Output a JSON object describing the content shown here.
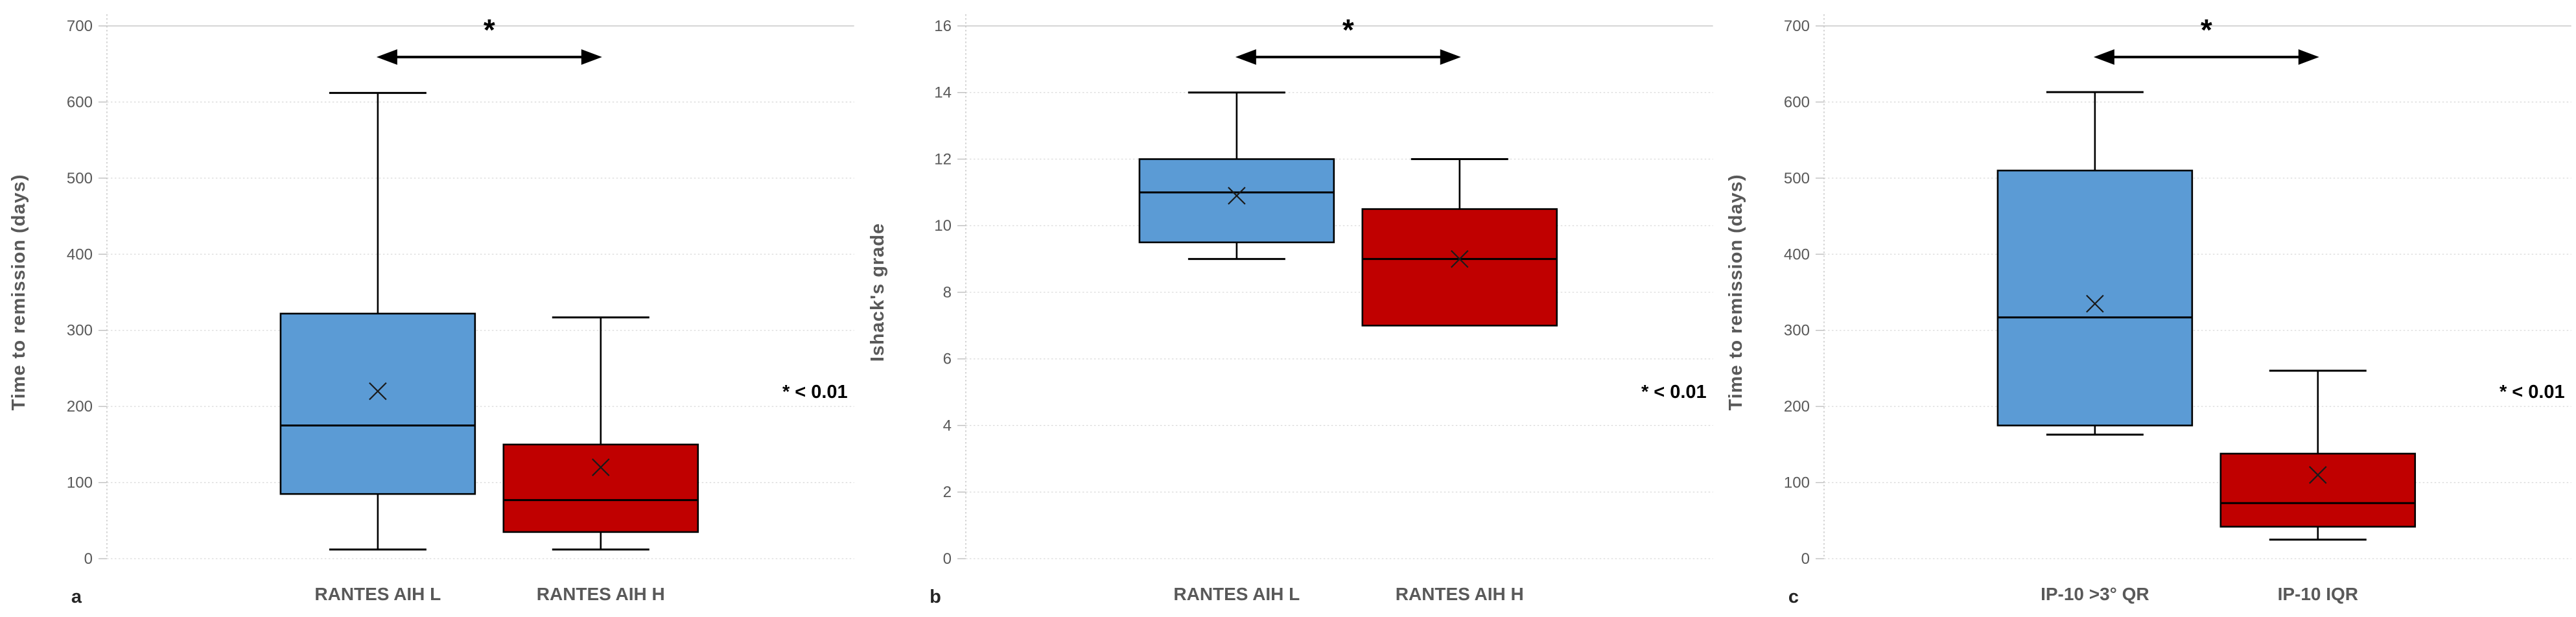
{
  "figure": {
    "background": "#ffffff",
    "panels_count": 3
  },
  "styles": {
    "box_blue": "#5B9BD5",
    "box_red": "#C00000",
    "box_border": "#000000",
    "whisker_color": "#000000",
    "gridline_dashed": "#D9D9D9",
    "gridline_top_solid": "#C9C9C9",
    "axis_line": "#BFBFBF",
    "axis_text": "#595959",
    "annotation_text": "#000000",
    "mean_marker": "#1a1a1a"
  },
  "chart_data": [
    {
      "type": "box",
      "panel_letter": "a",
      "title": "",
      "xlabel": "",
      "ylabel": "Time to remission (days)",
      "ylim": [
        0,
        700
      ],
      "yticks": [
        0,
        100,
        200,
        300,
        400,
        500,
        600,
        700
      ],
      "grid": true,
      "legend": "none",
      "annotation": "* < 0.01",
      "sig_marker": "*",
      "categories": [
        "RANTES AIH L",
        "RANTES AIH H"
      ],
      "series": [
        {
          "name": "RANTES AIH L",
          "color": "#5B9BD5",
          "whisker_low": 12,
          "q1": 85,
          "median": 175,
          "q3": 322,
          "whisker_high": 612,
          "mean": 220
        },
        {
          "name": "RANTES AIH H",
          "color": "#C00000",
          "whisker_low": 12,
          "q1": 35,
          "median": 77,
          "q3": 150,
          "whisker_high": 317,
          "mean": 120
        }
      ]
    },
    {
      "type": "box",
      "panel_letter": "b",
      "title": "",
      "xlabel": "",
      "ylabel": "Ishack's grade",
      "ylim": [
        0,
        16
      ],
      "yticks": [
        0,
        2,
        4,
        6,
        8,
        10,
        12,
        14,
        16
      ],
      "grid": true,
      "legend": "none",
      "annotation": "* < 0.01",
      "sig_marker": "*",
      "categories": [
        "RANTES AIH L",
        "RANTES AIH H"
      ],
      "series": [
        {
          "name": "RANTES AIH L",
          "color": "#5B9BD5",
          "whisker_low": 9,
          "q1": 9.5,
          "median": 11,
          "q3": 12,
          "whisker_high": 14,
          "mean": 10.9
        },
        {
          "name": "RANTES AIH H",
          "color": "#C00000",
          "whisker_low": 7,
          "q1": 7,
          "median": 9,
          "q3": 10.5,
          "whisker_high": 12,
          "mean": 9
        }
      ]
    },
    {
      "type": "box",
      "panel_letter": "c",
      "title": "",
      "xlabel": "",
      "ylabel": "Time to remission (days)",
      "ylim": [
        0,
        700
      ],
      "yticks": [
        0,
        100,
        200,
        300,
        400,
        500,
        600,
        700
      ],
      "grid": true,
      "legend": "none",
      "annotation": "* < 0.01",
      "sig_marker": "*",
      "categories": [
        "IP-10 >3° QR",
        "IP-10 IQR"
      ],
      "series": [
        {
          "name": "IP-10 >3° QR",
          "color": "#5B9BD5",
          "whisker_low": 163,
          "q1": 175,
          "median": 317,
          "q3": 510,
          "whisker_high": 613,
          "mean": 335
        },
        {
          "name": "IP-10 IQR",
          "color": "#C00000",
          "whisker_low": 25,
          "q1": 42,
          "median": 73,
          "q3": 138,
          "whisker_high": 247,
          "mean": 110
        }
      ]
    }
  ]
}
